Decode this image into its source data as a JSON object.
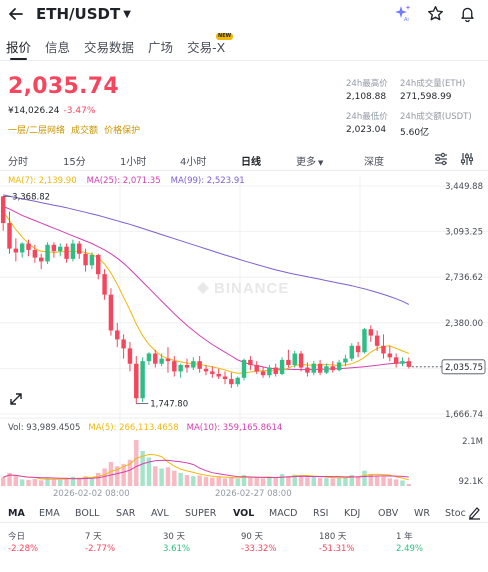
{
  "header": {
    "pair": "ETH/USDT",
    "icons": [
      "back-arrow-icon",
      "caret-down-icon",
      "ai-sparkle-icon",
      "star-icon",
      "bell-icon"
    ]
  },
  "tabs": [
    {
      "label": "报价",
      "active": true
    },
    {
      "label": "信息"
    },
    {
      "label": "交易数据"
    },
    {
      "label": "广场"
    },
    {
      "label": "交易-X",
      "badge": "NEW"
    }
  ],
  "price": {
    "last": "2,035.74",
    "cny": "¥14,026.24",
    "change": "-3.47%",
    "links": [
      "一层/二层网络",
      "成交额",
      "价格保护"
    ]
  },
  "stats": {
    "high_label": "24h最高价",
    "high_value": "2,108.88",
    "vol_eth_label": "24h成交量(ETH)",
    "vol_eth_value": "271,598.99",
    "low_label": "24h最低价",
    "low_value": "2,023.04",
    "vol_usdt_label": "24h成交额(USDT)",
    "vol_usdt_value": "5.60亿"
  },
  "timeframes": [
    "分时",
    "15分",
    "1小时",
    "4小时",
    "日线",
    "更多",
    "深度"
  ],
  "active_timeframe": "日线",
  "ma_legend": {
    "ma7": "MA(7): 2,139.90",
    "ma25": "MA(25): 2,071.35",
    "ma99": "MA(99): 2,523.91"
  },
  "price_axis": [
    "3,449.88",
    "3,093.25",
    "2,736.62",
    "2,380.00",
    "1,666.74"
  ],
  "current_price_tag": "2,035.75",
  "annotations": {
    "high": "3,368.82",
    "low": "1,747.80"
  },
  "watermark": "BINANCE",
  "volume_legend": {
    "vol": "Vol: 93,989.4505",
    "ma5": "MA(5): 266,113.4658",
    "ma10": "MA(10): 359,165.8614"
  },
  "volume_axis": [
    "2.1M",
    "92.1K"
  ],
  "date_axis": [
    "2026-02-02 08:00",
    "2026-02-27 08:00"
  ],
  "indicators": [
    "MA",
    "EMA",
    "BOLL",
    "SAR",
    "AVL",
    "SUPER",
    "VOL",
    "MACD",
    "RSI",
    "KDJ",
    "OBV",
    "WR",
    "Stoc"
  ],
  "active_main_indicator": "MA",
  "active_sub_indicator": "VOL",
  "performance": [
    {
      "label": "今日",
      "value": "-2.28%",
      "dir": "down"
    },
    {
      "label": "7 天",
      "value": "-2.77%",
      "dir": "down"
    },
    {
      "label": "30 天",
      "value": "3.61%",
      "dir": "up"
    },
    {
      "label": "90 天",
      "value": "-33.32%",
      "dir": "down"
    },
    {
      "label": "180 天",
      "value": "-51.31%",
      "dir": "down"
    },
    {
      "label": "1 年",
      "value": "2.49%",
      "dir": "up"
    }
  ],
  "chart_data": {
    "type": "candlestick",
    "ylim": [
      1666.74,
      3449.88
    ],
    "candles": [
      {
        "o": 3368.82,
        "h": 3368.82,
        "c": 3160,
        "l": 3100
      },
      {
        "o": 3160,
        "h": 3250,
        "c": 2960,
        "l": 2920
      },
      {
        "o": 2960,
        "h": 3040,
        "c": 2930,
        "l": 2860
      },
      {
        "o": 2930,
        "h": 3010,
        "c": 3000,
        "l": 2890
      },
      {
        "o": 3000,
        "h": 3030,
        "c": 2950,
        "l": 2900
      },
      {
        "o": 2950,
        "h": 2990,
        "c": 2890,
        "l": 2850
      },
      {
        "o": 2890,
        "h": 2920,
        "c": 2860,
        "l": 2800
      },
      {
        "o": 2860,
        "h": 3010,
        "c": 2990,
        "l": 2840
      },
      {
        "o": 2990,
        "h": 3010,
        "c": 2940,
        "l": 2890
      },
      {
        "o": 2940,
        "h": 3000,
        "c": 2975,
        "l": 2900
      },
      {
        "o": 2975,
        "h": 3000,
        "c": 2880,
        "l": 2850
      },
      {
        "o": 2880,
        "h": 3030,
        "c": 3000,
        "l": 2860
      },
      {
        "o": 3000,
        "h": 3020,
        "c": 2920,
        "l": 2880
      },
      {
        "o": 2920,
        "h": 2960,
        "c": 2830,
        "l": 2780
      },
      {
        "o": 2830,
        "h": 2930,
        "c": 2910,
        "l": 2800
      },
      {
        "o": 2910,
        "h": 2920,
        "c": 2760,
        "l": 2720
      },
      {
        "o": 2760,
        "h": 2800,
        "c": 2600,
        "l": 2560
      },
      {
        "o": 2600,
        "h": 2650,
        "c": 2320,
        "l": 2280
      },
      {
        "o": 2320,
        "h": 2380,
        "c": 2250,
        "l": 2190
      },
      {
        "o": 2250,
        "h": 2290,
        "c": 2180,
        "l": 2100
      },
      {
        "o": 2180,
        "h": 2230,
        "c": 2060,
        "l": 2000
      },
      {
        "o": 2060,
        "h": 2120,
        "c": 1790,
        "l": 1747.8
      },
      {
        "o": 1790,
        "h": 2110,
        "c": 2080,
        "l": 1760
      },
      {
        "o": 2080,
        "h": 2150,
        "c": 2140,
        "l": 2050
      },
      {
        "o": 2140,
        "h": 2170,
        "c": 2060,
        "l": 2030
      },
      {
        "o": 2060,
        "h": 2140,
        "c": 2100,
        "l": 2040
      },
      {
        "o": 2100,
        "h": 2190,
        "c": 2080,
        "l": 1990
      },
      {
        "o": 2080,
        "h": 2120,
        "c": 2000,
        "l": 1960
      },
      {
        "o": 2000,
        "h": 2060,
        "c": 2050,
        "l": 1950
      },
      {
        "o": 2050,
        "h": 2100,
        "c": 2030,
        "l": 1990
      },
      {
        "o": 2030,
        "h": 2110,
        "c": 2080,
        "l": 2010
      },
      {
        "o": 2080,
        "h": 2120,
        "c": 2020,
        "l": 1990
      },
      {
        "o": 2020,
        "h": 2050,
        "c": 2000,
        "l": 1970
      },
      {
        "o": 2000,
        "h": 2040,
        "c": 1980,
        "l": 1950
      },
      {
        "o": 1980,
        "h": 2020,
        "c": 1960,
        "l": 1940
      },
      {
        "o": 1960,
        "h": 2000,
        "c": 1940,
        "l": 1900
      },
      {
        "o": 1940,
        "h": 1990,
        "c": 1900,
        "l": 1870
      },
      {
        "o": 1900,
        "h": 1960,
        "c": 1950,
        "l": 1880
      },
      {
        "o": 1950,
        "h": 2100,
        "c": 2090,
        "l": 1930
      },
      {
        "o": 2090,
        "h": 2120,
        "c": 2050,
        "l": 2010
      },
      {
        "o": 2050,
        "h": 2080,
        "c": 2000,
        "l": 1980
      },
      {
        "o": 2000,
        "h": 2040,
        "c": 1970,
        "l": 1950
      },
      {
        "o": 1970,
        "h": 2050,
        "c": 2030,
        "l": 1950
      },
      {
        "o": 2030,
        "h": 2060,
        "c": 1980,
        "l": 1960
      },
      {
        "o": 1980,
        "h": 2110,
        "c": 2090,
        "l": 1970
      },
      {
        "o": 2090,
        "h": 2170,
        "c": 2050,
        "l": 2030
      },
      {
        "o": 2050,
        "h": 2160,
        "c": 2140,
        "l": 2030
      },
      {
        "o": 2140,
        "h": 2160,
        "c": 2030,
        "l": 2000
      },
      {
        "o": 2030,
        "h": 2070,
        "c": 1990,
        "l": 1960
      },
      {
        "o": 1990,
        "h": 2080,
        "c": 2060,
        "l": 1970
      },
      {
        "o": 2060,
        "h": 2090,
        "c": 1990,
        "l": 1970
      },
      {
        "o": 1990,
        "h": 2060,
        "c": 2040,
        "l": 1980
      },
      {
        "o": 2040,
        "h": 2080,
        "c": 2010,
        "l": 1990
      },
      {
        "o": 2010,
        "h": 2090,
        "c": 2070,
        "l": 2000
      },
      {
        "o": 2070,
        "h": 2130,
        "c": 2100,
        "l": 2040
      },
      {
        "o": 2100,
        "h": 2220,
        "c": 2200,
        "l": 2080
      },
      {
        "o": 2200,
        "h": 2230,
        "c": 2150,
        "l": 2110
      },
      {
        "o": 2150,
        "h": 2340,
        "c": 2330,
        "l": 2140
      },
      {
        "o": 2330,
        "h": 2360,
        "c": 2280,
        "l": 2230
      },
      {
        "o": 2280,
        "h": 2320,
        "c": 2200,
        "l": 2160
      },
      {
        "o": 2200,
        "h": 2290,
        "c": 2140,
        "l": 2100
      },
      {
        "o": 2140,
        "h": 2200,
        "c": 2110,
        "l": 2080
      },
      {
        "o": 2110,
        "h": 2140,
        "c": 2060,
        "l": 2030
      },
      {
        "o": 2060,
        "h": 2110,
        "c": 2080,
        "l": 2040
      },
      {
        "o": 2080,
        "h": 2108.88,
        "c": 2035.75,
        "l": 2023.04
      }
    ],
    "ma7": [
      3250,
      3180,
      3110,
      3050,
      3000,
      2960,
      2940,
      2935,
      2930,
      2935,
      2935,
      2940,
      2940,
      2930,
      2915,
      2890,
      2840,
      2770,
      2680,
      2580,
      2480,
      2370,
      2280,
      2210,
      2160,
      2120,
      2100,
      2085,
      2075,
      2065,
      2060,
      2055,
      2045,
      2035,
      2025,
      2012,
      1995,
      1985,
      1988,
      1995,
      2000,
      2005,
      2008,
      2010,
      2012,
      2025,
      2045,
      2055,
      2050,
      2048,
      2050,
      2055,
      2050,
      2045,
      2050,
      2060,
      2080,
      2110,
      2150,
      2180,
      2195,
      2200,
      2180,
      2160,
      2139.9
    ],
    "ma25": [
      3290,
      3270,
      3245,
      3220,
      3200,
      3180,
      3160,
      3140,
      3120,
      3100,
      3080,
      3060,
      3040,
      3020,
      3000,
      2975,
      2950,
      2920,
      2885,
      2845,
      2800,
      2750,
      2700,
      2650,
      2600,
      2550,
      2500,
      2450,
      2405,
      2360,
      2320,
      2280,
      2245,
      2210,
      2180,
      2150,
      2120,
      2090,
      2070,
      2055,
      2045,
      2035,
      2025,
      2020,
      2018,
      2016,
      2015,
      2014,
      2014,
      2015,
      2016,
      2018,
      2020,
      2022,
      2025,
      2028,
      2032,
      2036,
      2042,
      2048,
      2055,
      2060,
      2064,
      2068,
      2071.35
    ],
    "ma99": [
      3380,
      3370,
      3360,
      3350,
      3340,
      3330,
      3320,
      3310,
      3300,
      3290,
      3280,
      3268,
      3256,
      3244,
      3232,
      3220,
      3206,
      3192,
      3178,
      3164,
      3150,
      3134,
      3118,
      3102,
      3086,
      3070,
      3054,
      3038,
      3022,
      3006,
      2990,
      2974,
      2958,
      2942,
      2926,
      2910,
      2895,
      2880,
      2865,
      2850,
      2836,
      2822,
      2808,
      2794,
      2782,
      2770,
      2760,
      2750,
      2740,
      2730,
      2720,
      2710,
      2700,
      2690,
      2680,
      2670,
      2658,
      2646,
      2632,
      2618,
      2602,
      2586,
      2568,
      2548,
      2523.91
    ],
    "volumes": [
      400000,
      600000,
      450000,
      300000,
      280000,
      320000,
      260000,
      380000,
      300000,
      280000,
      350000,
      420000,
      380000,
      450000,
      360000,
      600000,
      800000,
      1100000,
      900000,
      1000000,
      1200000,
      2100000,
      1600000,
      1300000,
      900000,
      800000,
      850000,
      700000,
      600000,
      500000,
      450000,
      480000,
      420000,
      380000,
      400000,
      350000,
      380000,
      330000,
      500000,
      420000,
      380000,
      350000,
      400000,
      380000,
      550000,
      450000,
      520000,
      480000,
      400000,
      420000,
      380000,
      360000,
      350000,
      380000,
      400000,
      500000,
      450000,
      700000,
      550000,
      480000,
      420000,
      350000,
      300000,
      250000,
      93989
    ]
  }
}
